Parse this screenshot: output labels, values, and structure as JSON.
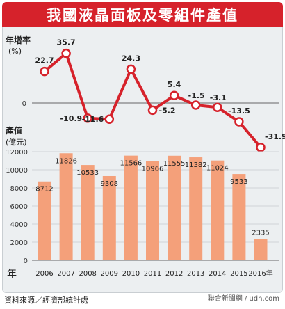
{
  "title": "我國液晶面板及零組件產值",
  "source": "資料來源／經濟部統計處",
  "watermark": "聯合新聞網 / udn.com",
  "colors": {
    "line": "#d6222b",
    "bar": "#f4a07a",
    "header": "#d6222b"
  },
  "chart_data": [
    {
      "type": "line",
      "ylabel": "年增率",
      "yunit": "(%)",
      "x": [
        "2006",
        "2007",
        "2008",
        "2009",
        "2010",
        "2011",
        "2012",
        "2013",
        "2014",
        "2015",
        "2016年"
      ],
      "values": [
        22.7,
        35.7,
        -10.9,
        -11.6,
        24.3,
        -5.2,
        5.4,
        -1.5,
        -3.1,
        -13.5,
        -31.9
      ],
      "zero_tick": "0"
    },
    {
      "type": "bar",
      "ylabel": "產值",
      "yunit": "(億元)",
      "categories": [
        "2006",
        "2007",
        "2008",
        "2009",
        "2010",
        "2011",
        "2012",
        "2013",
        "2014",
        "2015",
        "2016年"
      ],
      "values": [
        8712,
        11826,
        10533,
        9308,
        11566,
        10966,
        11555,
        11382,
        11024,
        9533,
        2335
      ],
      "yticks": [
        0,
        2000,
        4000,
        6000,
        8000,
        10000,
        12000
      ],
      "ylim": [
        0,
        12000
      ],
      "xlabel": "年",
      "grid": true
    }
  ]
}
